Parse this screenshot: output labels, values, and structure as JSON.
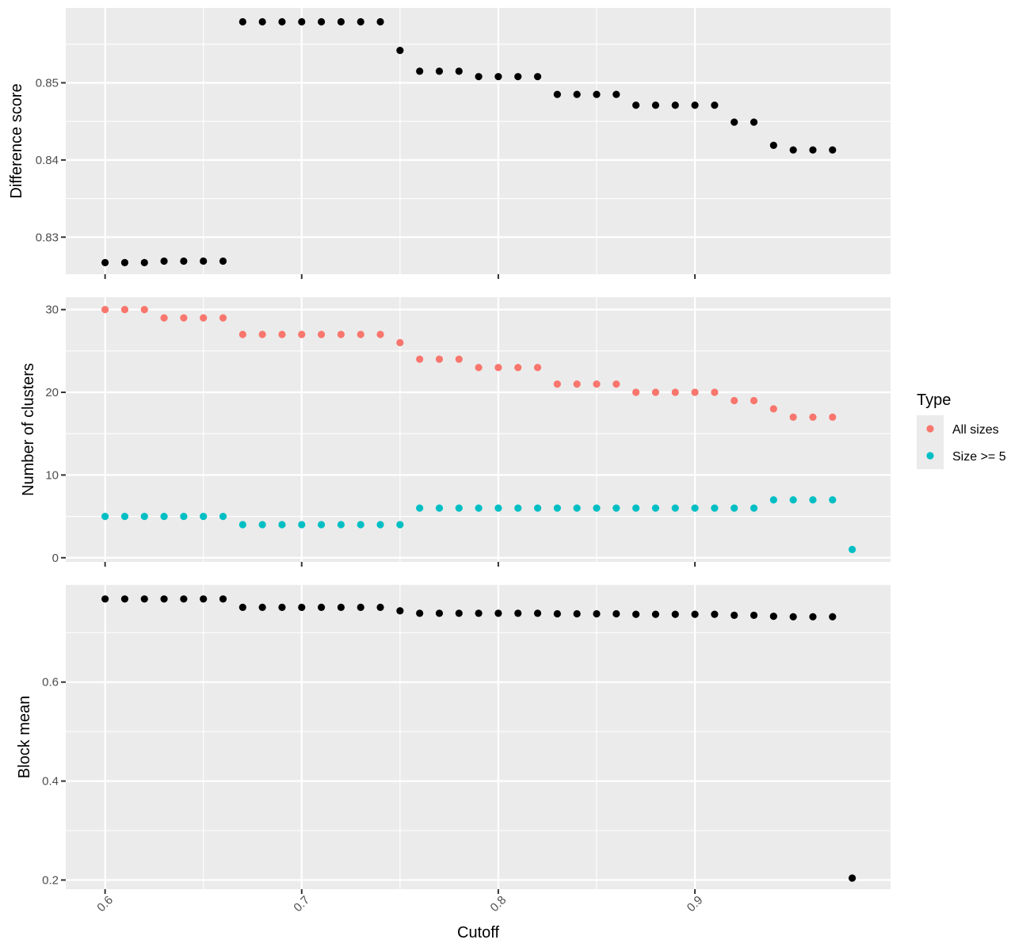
{
  "chart_data": {
    "type": "scatter",
    "xlabel": "Cutoff",
    "xlim": [
      0.58,
      0.9995
    ],
    "xticks": [
      0.6,
      0.7,
      0.8,
      0.9
    ],
    "x_tick_labels": [
      "0.6",
      "0.7",
      "0.8",
      "0.9"
    ],
    "panels": [
      {
        "ylabel": "Difference score",
        "ylim": [
          0.8252,
          0.8597
        ],
        "yticks": [
          0.83,
          0.84,
          0.85
        ],
        "y_tick_labels": [
          "0.83",
          "0.84",
          "0.85"
        ],
        "series": [
          {
            "color": "#000000",
            "x": [
              0.6,
              0.61,
              0.62,
              0.63,
              0.64,
              0.65,
              0.66,
              0.67,
              0.68,
              0.69,
              0.7,
              0.71,
              0.72,
              0.73,
              0.74,
              0.75,
              0.76,
              0.77,
              0.78,
              0.79,
              0.8,
              0.81,
              0.82,
              0.83,
              0.84,
              0.85,
              0.86,
              0.87,
              0.88,
              0.89,
              0.9,
              0.91,
              0.92,
              0.93,
              0.94,
              0.95,
              0.96,
              0.97
            ],
            "y": [
              0.8267,
              0.8267,
              0.8267,
              0.8269,
              0.8269,
              0.8269,
              0.8269,
              0.8579,
              0.8579,
              0.8579,
              0.8579,
              0.8579,
              0.8579,
              0.8579,
              0.8579,
              0.8542,
              0.8515,
              0.8515,
              0.8515,
              0.8508,
              0.8508,
              0.8508,
              0.8508,
              0.8485,
              0.8485,
              0.8485,
              0.8485,
              0.8471,
              0.8471,
              0.8471,
              0.8471,
              0.8471,
              0.8449,
              0.8449,
              0.8419,
              0.8413,
              0.8413,
              0.8413
            ]
          }
        ]
      },
      {
        "ylabel": "Number of clusters",
        "ylim": [
          -0.5,
          31.5
        ],
        "yticks": [
          0,
          10,
          20,
          30
        ],
        "y_tick_labels": [
          "0",
          "10",
          "20",
          "30"
        ],
        "series": [
          {
            "name": "All sizes",
            "color": "#f8766d",
            "x": [
              0.6,
              0.61,
              0.62,
              0.63,
              0.64,
              0.65,
              0.66,
              0.67,
              0.68,
              0.69,
              0.7,
              0.71,
              0.72,
              0.73,
              0.74,
              0.75,
              0.76,
              0.77,
              0.78,
              0.79,
              0.8,
              0.81,
              0.82,
              0.83,
              0.84,
              0.85,
              0.86,
              0.87,
              0.88,
              0.89,
              0.9,
              0.91,
              0.92,
              0.93,
              0.94,
              0.95,
              0.96,
              0.97
            ],
            "y": [
              30,
              30,
              30,
              29,
              29,
              29,
              29,
              27,
              27,
              27,
              27,
              27,
              27,
              27,
              27,
              26,
              24,
              24,
              24,
              23,
              23,
              23,
              23,
              21,
              21,
              21,
              21,
              20,
              20,
              20,
              20,
              20,
              19,
              19,
              18,
              17,
              17,
              17
            ]
          },
          {
            "name": "Size >= 5",
            "color": "#00bfc4",
            "x": [
              0.6,
              0.61,
              0.62,
              0.63,
              0.64,
              0.65,
              0.66,
              0.67,
              0.68,
              0.69,
              0.7,
              0.71,
              0.72,
              0.73,
              0.74,
              0.75,
              0.76,
              0.77,
              0.78,
              0.79,
              0.8,
              0.81,
              0.82,
              0.83,
              0.84,
              0.85,
              0.86,
              0.87,
              0.88,
              0.89,
              0.9,
              0.91,
              0.92,
              0.93,
              0.94,
              0.95,
              0.96,
              0.97,
              0.98
            ],
            "y": [
              5,
              5,
              5,
              5,
              5,
              5,
              5,
              4,
              4,
              4,
              4,
              4,
              4,
              4,
              4,
              4,
              6,
              6,
              6,
              6,
              6,
              6,
              6,
              6,
              6,
              6,
              6,
              6,
              6,
              6,
              6,
              6,
              6,
              6,
              7,
              7,
              7,
              7,
              1
            ]
          }
        ]
      },
      {
        "ylabel": "Block mean",
        "ylim": [
          0.1815,
          0.7965
        ],
        "yticks": [
          0.2,
          0.4,
          0.6
        ],
        "y_tick_labels": [
          "0.2",
          "0.4",
          "0.6"
        ],
        "series": [
          {
            "color": "#000000",
            "x": [
              0.6,
              0.61,
              0.62,
              0.63,
              0.64,
              0.65,
              0.66,
              0.67,
              0.68,
              0.69,
              0.7,
              0.71,
              0.72,
              0.73,
              0.74,
              0.75,
              0.76,
              0.77,
              0.78,
              0.79,
              0.8,
              0.81,
              0.82,
              0.83,
              0.84,
              0.85,
              0.86,
              0.87,
              0.88,
              0.89,
              0.9,
              0.91,
              0.92,
              0.93,
              0.94,
              0.95,
              0.96,
              0.97,
              0.98
            ],
            "y": [
              0.768,
              0.768,
              0.768,
              0.768,
              0.768,
              0.768,
              0.768,
              0.751,
              0.751,
              0.751,
              0.751,
              0.751,
              0.751,
              0.751,
              0.751,
              0.744,
              0.739,
              0.739,
              0.739,
              0.739,
              0.739,
              0.739,
              0.739,
              0.738,
              0.738,
              0.738,
              0.738,
              0.737,
              0.737,
              0.737,
              0.737,
              0.737,
              0.735,
              0.735,
              0.733,
              0.732,
              0.732,
              0.732,
              0.204
            ]
          }
        ]
      }
    ],
    "legend": {
      "title": "Type",
      "position": "right",
      "entries": [
        {
          "label": "All sizes",
          "color": "#f8766d"
        },
        {
          "label": "Size >= 5",
          "color": "#00bfc4"
        }
      ]
    },
    "grid": true
  }
}
